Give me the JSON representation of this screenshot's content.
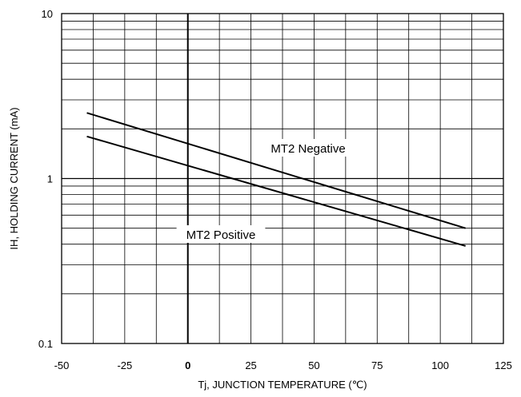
{
  "chart_data": {
    "type": "line",
    "xlabel": "Tj, JUNCTION TEMPERATURE (℃)",
    "ylabel": "IH, HOLDING CURRENT (mA)",
    "xlim": [
      -50,
      125
    ],
    "ylim": [
      0.1,
      10
    ],
    "yscale": "log",
    "xticks": [
      -50,
      -25,
      0,
      25,
      50,
      75,
      100,
      125
    ],
    "xtick_labels": [
      "-50",
      "-25",
      "0",
      "25",
      "50",
      "75",
      "100",
      "125"
    ],
    "yticks": [
      0.1,
      1,
      10
    ],
    "ytick_labels": [
      "0.1",
      "1",
      "10"
    ],
    "grid": true,
    "series": [
      {
        "name": "MT2 Negative",
        "x": [
          -40,
          110
        ],
        "y": [
          2.5,
          0.5
        ]
      },
      {
        "name": "MT2 Positive",
        "x": [
          -40,
          110
        ],
        "y": [
          1.8,
          0.39
        ]
      }
    ]
  }
}
